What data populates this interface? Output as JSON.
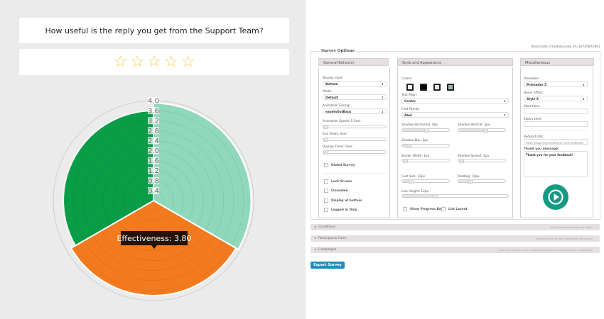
{
  "survey": {
    "question": "How useful is the reply you get from the Support Team?",
    "star_count": 5,
    "rating": 0
  },
  "chart_data": {
    "type": "polarArea",
    "r_ticks": [
      "0.4",
      "0.8",
      "1.2",
      "1.6",
      "2.0",
      "2.4",
      "2.8",
      "3.2",
      "3.6",
      "4.0"
    ],
    "r_range": [
      0,
      4.0
    ],
    "values": [
      3.9,
      3.8,
      3.6
    ],
    "colors": [
      "#8fd8bb",
      "#f47a1f",
      "#0a9d48"
    ],
    "tooltip": "Effectiveness: 3.80"
  },
  "panel": {
    "shortcode": "Shortcode: [modalsurvey id=1674587280]",
    "legend": "Survey Options",
    "columns": [
      "General Behavior",
      "Style and Appearance",
      "Miscellaneous"
    ],
    "general": {
      "display_style_label": "Display style:",
      "display_style": "Bottom",
      "mode_label": "Mode:",
      "mode": "Default",
      "easing_label": "Animation Easing:",
      "easing": "easeInOutBack",
      "anim_speed": "Animation Speed: 0.5sec",
      "end_delay": "End Delay: 3sec",
      "display_timer": "Display Timer: 0sec",
      "global": "Global Survey",
      "lock": "Lock Screen",
      "closeable": "Closeable",
      "bottom": "Display at bottom",
      "logged": "Logged In Only"
    },
    "style": {
      "colors_label": "Colors:",
      "swatches": [
        "#ffffff",
        "#000000",
        "#e8e8e8",
        "#9fb8a8"
      ],
      "align_label": "Text Align:",
      "align": "Center",
      "font_label": "Font Family:",
      "font": "Abel",
      "shadow_h": "Shadow Horizontal: 0px",
      "shadow_v": "Shadow Vertical: 2px",
      "shadow_blur": "Shadow Blur: 3px",
      "border_width": "Border Width: 1px",
      "shadow_spread": "Shadow Spread: 1px",
      "font_size": "Font Size: 12px",
      "padding": "Padding: 10px",
      "line_height": "Line Height: 12px",
      "progress": "Show Progress Bar",
      "list_layout": "List Layout"
    },
    "misc": {
      "preloader_label": "Preloader:",
      "preloader": "Preloader 5",
      "hover_label": "Hover Effect:",
      "hover": "Style 5",
      "start_label": "Start time:",
      "expiry_label": "Expiry time:",
      "redirect_label": "Redirect URL:",
      "redirect_placeholder": "http://www.yourwebsiteurl.com/subpage",
      "thanks_label": "Thank you message:",
      "thanks": "Thank you for your feedback!"
    },
    "sections": [
      {
        "title": "Conditions",
        "desc": "Set Actions based on the Votes"
      },
      {
        "title": "Participants Form",
        "desc": "Display Form at the Completion of Survey"
      },
      {
        "title": "Campaigns",
        "desc": "Save the survey's form datas automatically to Newsletter Campaigns"
      }
    ],
    "export": "Export Survey"
  }
}
